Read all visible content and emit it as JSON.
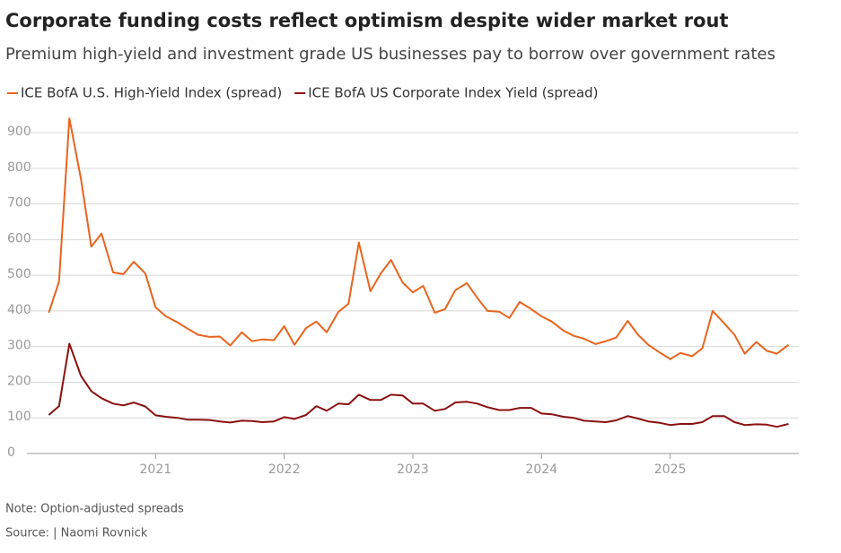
{
  "chart_data": {
    "type": "line",
    "title": "Corporate funding costs reflect optimism despite wider market rout",
    "subtitle": "Premium high-yield and investment grade US businesses pay to borrow over government rates",
    "note": "Note: Option-adjusted spreads",
    "source": "Source:  | Naomi Rovnick",
    "x": [
      2020.17,
      2020.25,
      2020.33,
      2020.42,
      2020.5,
      2020.58,
      2020.67,
      2020.75,
      2020.83,
      2020.92,
      2021,
      2021.08,
      2021.17,
      2021.25,
      2021.33,
      2021.42,
      2021.5,
      2021.58,
      2021.67,
      2021.75,
      2021.83,
      2021.92,
      2022,
      2022.08,
      2022.17,
      2022.25,
      2022.33,
      2022.42,
      2022.5,
      2022.58,
      2022.67,
      2022.75,
      2022.83,
      2022.92,
      2023,
      2023.08,
      2023.17,
      2023.25,
      2023.33,
      2023.42,
      2023.5,
      2023.58,
      2023.67,
      2023.75,
      2023.83,
      2023.92,
      2024,
      2024.08,
      2024.17,
      2024.25,
      2024.33,
      2024.42,
      2024.5,
      2024.58,
      2024.67,
      2024.75,
      2024.83,
      2024.92,
      2025,
      2025.08,
      2025.17,
      2025.25,
      2025.33,
      2025.42,
      2025.5,
      2025.58,
      2025.67,
      2025.75,
      2025.83,
      2025.92
    ],
    "series": [
      {
        "name": "ICE BofA U.S. High-Yield Index (spread)",
        "color": "#e8641e",
        "values": [
          395,
          483,
          940,
          770,
          580,
          617,
          508,
          503,
          538,
          505,
          410,
          385,
          368,
          350,
          333,
          327,
          328,
          303,
          340,
          315,
          320,
          318,
          357,
          305,
          352,
          370,
          340,
          397,
          420,
          592,
          455,
          505,
          543,
          480,
          452,
          470,
          395,
          405,
          458,
          478,
          437,
          400,
          398,
          380,
          425,
          405,
          385,
          370,
          345,
          330,
          322,
          307,
          315,
          325,
          372,
          333,
          305,
          283,
          265,
          282,
          273,
          295,
          400,
          365,
          333,
          280,
          313,
          288,
          280,
          305
        ]
      },
      {
        "name": "ICE BofA US Corporate Index Yield (spread)",
        "color": "#8b1010",
        "values": [
          108,
          133,
          308,
          218,
          175,
          155,
          140,
          135,
          143,
          132,
          107,
          103,
          100,
          95,
          95,
          94,
          90,
          87,
          92,
          91,
          88,
          90,
          102,
          97,
          108,
          133,
          120,
          140,
          138,
          165,
          150,
          150,
          165,
          163,
          140,
          140,
          120,
          125,
          143,
          145,
          140,
          130,
          122,
          122,
          128,
          128,
          112,
          110,
          103,
          100,
          92,
          90,
          88,
          93,
          105,
          98,
          90,
          86,
          80,
          83,
          83,
          88,
          105,
          105,
          88,
          80,
          82,
          81,
          75,
          83
        ]
      }
    ],
    "xlim": [
      2020,
      2026
    ],
    "xticks": [
      2021,
      2022,
      2023,
      2024,
      2025
    ],
    "ylim": [
      0,
      900
    ],
    "yticks": [
      0,
      100,
      200,
      300,
      400,
      500,
      600,
      700,
      800,
      900
    ],
    "grid": true
  }
}
